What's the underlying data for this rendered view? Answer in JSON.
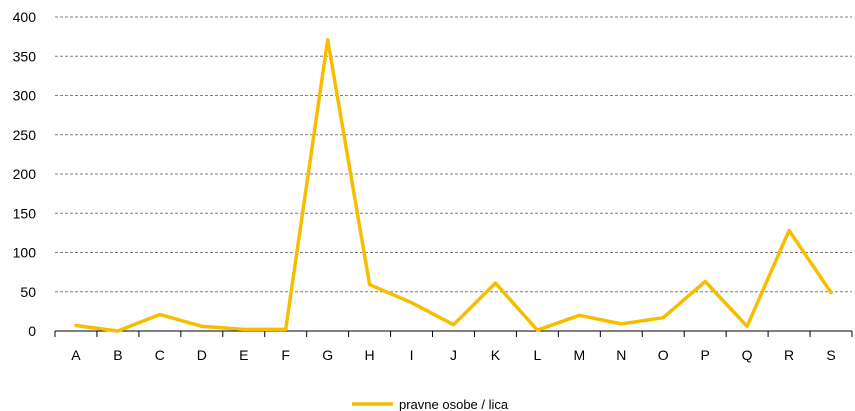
{
  "chart_data": {
    "type": "line",
    "title": "",
    "xlabel": "",
    "ylabel": "",
    "categories": [
      "A",
      "B",
      "C",
      "D",
      "E",
      "F",
      "G",
      "H",
      "I",
      "J",
      "K",
      "L",
      "M",
      "N",
      "O",
      "P",
      "Q",
      "R",
      "S"
    ],
    "series": [
      {
        "name": "pravne osobe / lica",
        "color": "#F7BE00",
        "values": [
          7,
          0,
          21,
          6,
          2,
          2,
          371,
          59,
          36,
          8,
          61,
          1,
          20,
          9,
          17,
          63,
          6,
          128,
          49
        ]
      }
    ],
    "ylim": [
      0,
      400
    ],
    "yticks": [
      0,
      50,
      100,
      150,
      200,
      250,
      300,
      350,
      400
    ],
    "grid": "horizontal-dashed",
    "legend": "bottom-center"
  }
}
